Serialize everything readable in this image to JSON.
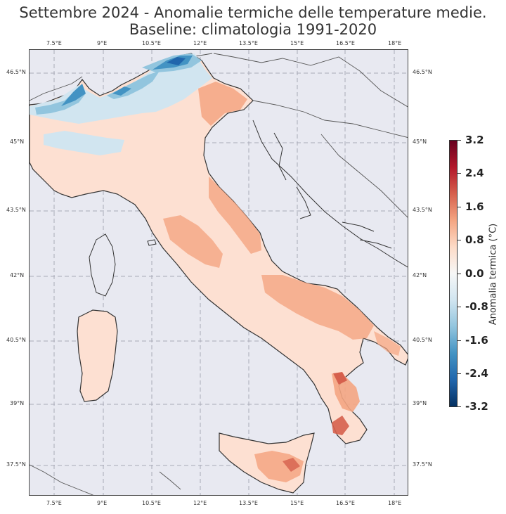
{
  "title_line1": "Settembre 2024 - Anomalie termiche delle temperature medie.",
  "title_line2": "Baseline: climatologia 1991-2020",
  "lon_ticks": [
    "7.5°E",
    "9°E",
    "10.5°E",
    "12°E",
    "13.5°E",
    "15°E",
    "16.5°E",
    "18°E"
  ],
  "lat_ticks": [
    "46.5°N",
    "45°N",
    "43.5°N",
    "42°N",
    "40.5°N",
    "39°N",
    "37.5°N"
  ],
  "colorbar": {
    "label": "Anomalia termica (°C)",
    "ticks": [
      "3.2",
      "2.4",
      "1.6",
      "0.8",
      "0.0",
      "-0.8",
      "-1.6",
      "-2.4",
      "-3.2"
    ],
    "colors": [
      "#67001f",
      "#b2182b",
      "#d6604d",
      "#f4a582",
      "#fddbc7",
      "#f7f7f7",
      "#d1e5f0",
      "#92c5de",
      "#4393c3",
      "#2166ac",
      "#053061"
    ]
  },
  "map": {
    "sea_color": "#e8e9f1",
    "land_color": "#fde0d2",
    "warm_color": "#f4a582",
    "hot_color": "#d6604d",
    "cool_color": "#d1e5f0",
    "cold_color": "#4393c3",
    "very_cold_color": "#2166ac"
  }
}
